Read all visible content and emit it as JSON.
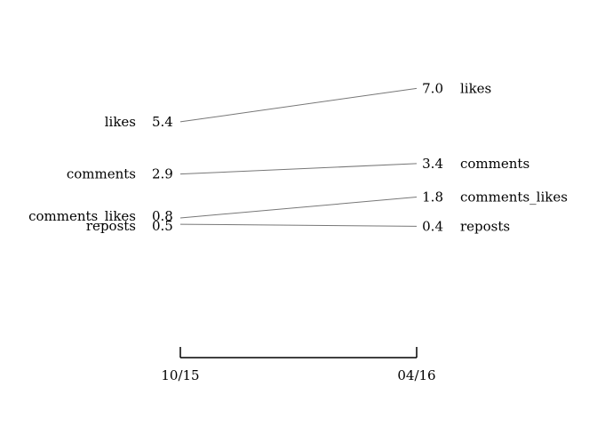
{
  "chart_data": {
    "type": "line",
    "subtype": "slopegraph",
    "x": [
      "10/15",
      "04/16"
    ],
    "series": [
      {
        "name": "likes",
        "values": [
          5.4,
          7.0
        ]
      },
      {
        "name": "comments",
        "values": [
          2.9,
          3.4
        ]
      },
      {
        "name": "comments_likes",
        "values": [
          0.8,
          1.8
        ]
      },
      {
        "name": "reposts",
        "values": [
          0.5,
          0.4
        ]
      }
    ],
    "value_labels": {
      "likes": [
        "5.4",
        "7.0"
      ],
      "comments": [
        "2.9",
        "3.4"
      ],
      "comments_likes": [
        "0.8",
        "1.8"
      ],
      "reposts": [
        "0.5",
        "0.4"
      ]
    },
    "line_color": "#777777",
    "grid": false,
    "legend": "none"
  }
}
